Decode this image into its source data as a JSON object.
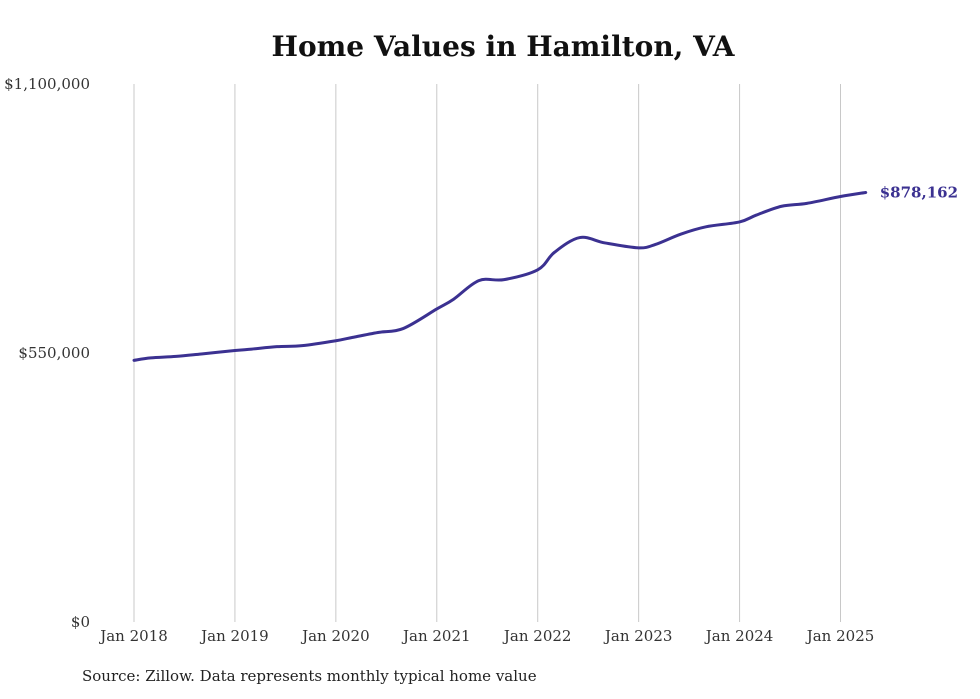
{
  "chart_data": {
    "type": "line",
    "title": "Home Values in Hamilton, VA",
    "xlabel": "",
    "ylabel": "",
    "ylim": [
      0,
      1100000
    ],
    "yticks": [
      {
        "value": 0,
        "label": "$0"
      },
      {
        "value": 550000,
        "label": "$550,000"
      },
      {
        "value": 1100000,
        "label": "$1,100,000"
      }
    ],
    "xticks": [
      {
        "value": "2018-01",
        "label": "Jan 2018"
      },
      {
        "value": "2019-01",
        "label": "Jan 2019"
      },
      {
        "value": "2020-01",
        "label": "Jan 2020"
      },
      {
        "value": "2021-01",
        "label": "Jan 2021"
      },
      {
        "value": "2022-01",
        "label": "Jan 2022"
      },
      {
        "value": "2023-01",
        "label": "Jan 2023"
      },
      {
        "value": "2024-01",
        "label": "Jan 2024"
      },
      {
        "value": "2025-01",
        "label": "Jan 2025"
      }
    ],
    "grid": {
      "vertical": true,
      "horizontal": false
    },
    "legend": "none",
    "series": [
      {
        "color": "#3b3191",
        "end_label": "$878,162",
        "points": [
          [
            "2018-01",
            535000
          ],
          [
            "2018-03",
            540000
          ],
          [
            "2018-06",
            543000
          ],
          [
            "2018-09",
            548000
          ],
          [
            "2019-01",
            555000
          ],
          [
            "2019-03",
            558000
          ],
          [
            "2019-06",
            563000
          ],
          [
            "2019-09",
            565000
          ],
          [
            "2020-01",
            575000
          ],
          [
            "2020-03",
            582000
          ],
          [
            "2020-06",
            592000
          ],
          [
            "2020-09",
            600000
          ],
          [
            "2021-01",
            640000
          ],
          [
            "2021-03",
            660000
          ],
          [
            "2021-06",
            698000
          ],
          [
            "2021-09",
            700000
          ],
          [
            "2022-01",
            720000
          ],
          [
            "2022-03",
            756000
          ],
          [
            "2022-06",
            786000
          ],
          [
            "2022-09",
            775000
          ],
          [
            "2023-01",
            765000
          ],
          [
            "2023-03",
            772000
          ],
          [
            "2023-06",
            793000
          ],
          [
            "2023-09",
            808000
          ],
          [
            "2024-01",
            818000
          ],
          [
            "2024-03",
            832000
          ],
          [
            "2024-06",
            850000
          ],
          [
            "2024-09",
            856000
          ],
          [
            "2025-01",
            870000
          ],
          [
            "2025-04",
            878162
          ]
        ]
      }
    ]
  },
  "source_note": "Source: Zillow. Data represents monthly typical home value"
}
